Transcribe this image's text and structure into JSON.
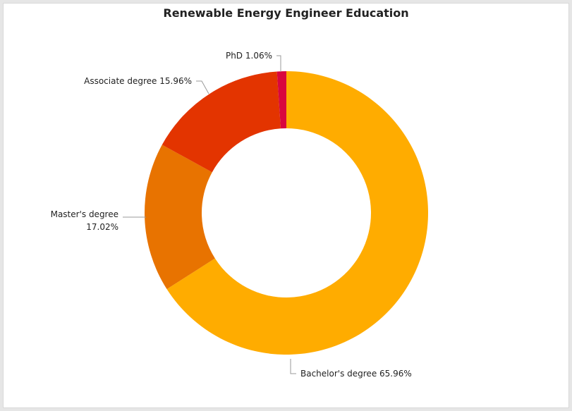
{
  "chart_data": {
    "type": "pie",
    "donut": true,
    "title": "Renewable Energy Engineer Education",
    "slices": [
      {
        "label": "Bachelor's degree",
        "value": 65.96,
        "value_text": "65.96%",
        "color": "#ffac00"
      },
      {
        "label": "Master's degree",
        "value": 17.02,
        "value_text": "17.02%",
        "color": "#e87300"
      },
      {
        "label": "Associate degree",
        "value": 15.96,
        "value_text": "15.96%",
        "color": "#e33400"
      },
      {
        "label": "PhD",
        "value": 1.06,
        "value_text": "1.06%",
        "color": "#d9063e"
      }
    ]
  }
}
